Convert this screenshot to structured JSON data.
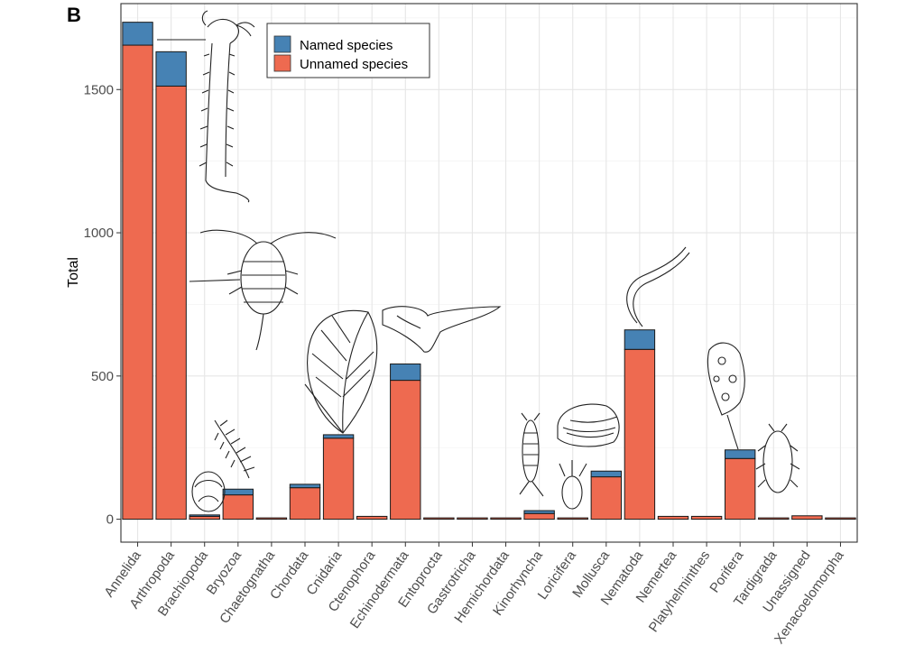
{
  "panel_label": "B",
  "colors": {
    "named": "#4682b4",
    "unnamed": "#ee6a50",
    "grid": "#e6e6e6",
    "border": "#333333"
  },
  "chart_data": {
    "type": "bar",
    "stacked": true,
    "xlabel": "",
    "ylabel": "Total",
    "ylim": [
      -80,
      1800
    ],
    "yticks": [
      0,
      500,
      1000,
      1500
    ],
    "grid": true,
    "legend_position": "top-left",
    "categories": [
      "Annelida",
      "Arthropoda",
      "Brachiopoda",
      "Bryozoa",
      "Chaetognatha",
      "Chordata",
      "Cnidaria",
      "Ctenophora",
      "Echinodermata",
      "Entoprocta",
      "Gastrotricha",
      "Hemichordata",
      "Kinorhyncha",
      "Loricifera",
      "Mollusca",
      "Nematoda",
      "Nemertea",
      "Platyhelminthes",
      "Porifera",
      "Tardigrada",
      "Unassigned",
      "Xenacoelomorpha"
    ],
    "series": [
      {
        "name": "Unnamed species",
        "color": "#ee6a50",
        "values": [
          1655,
          1512,
          10,
          85,
          2,
          110,
          283,
          10,
          485,
          4,
          1,
          2,
          20,
          4,
          148,
          593,
          10,
          10,
          212,
          4,
          12,
          2
        ]
      },
      {
        "name": "Named species",
        "color": "#4682b4",
        "values": [
          80,
          120,
          5,
          20,
          0,
          12,
          12,
          0,
          57,
          0,
          0,
          0,
          10,
          0,
          20,
          68,
          0,
          0,
          30,
          0,
          0,
          0
        ]
      }
    ]
  }
}
